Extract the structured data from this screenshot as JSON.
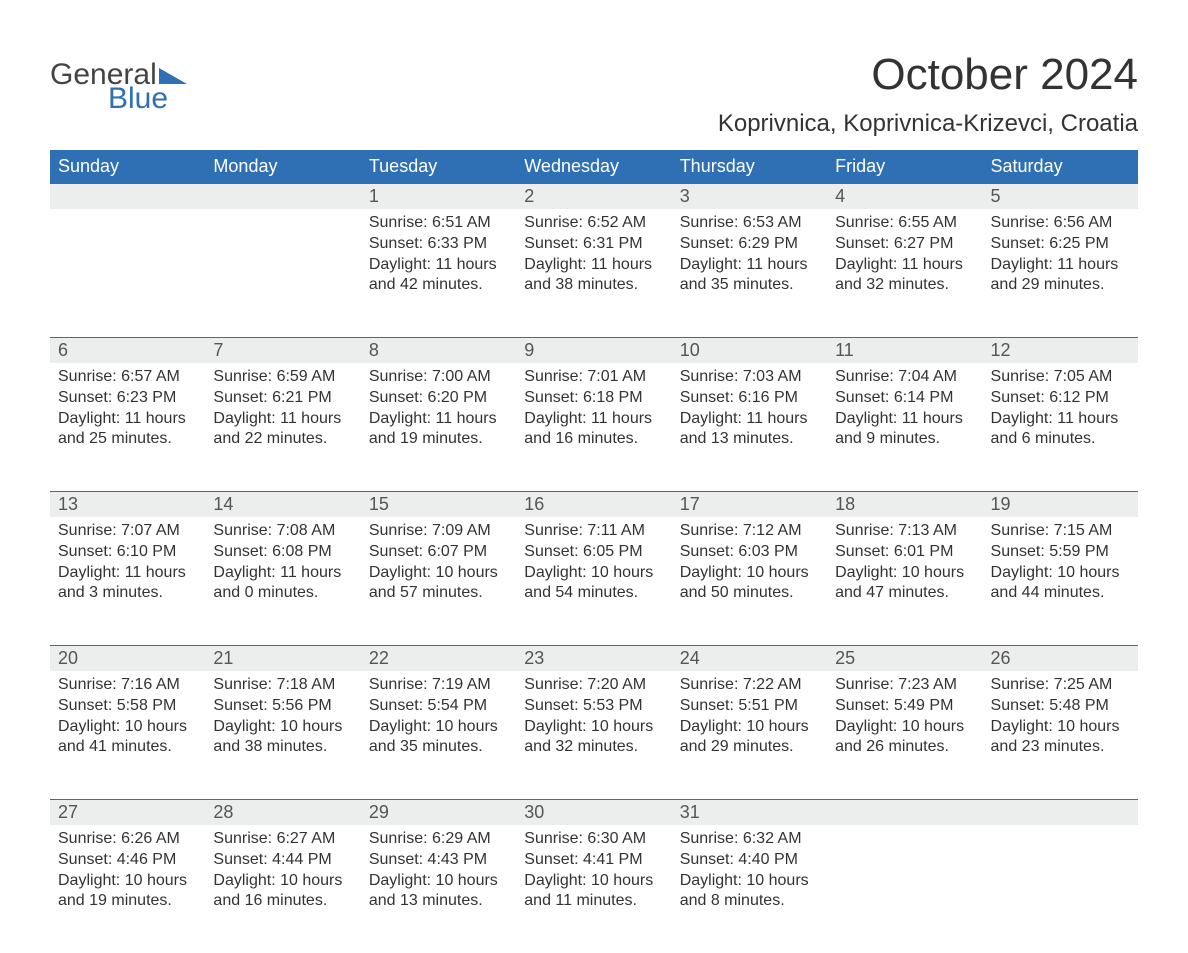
{
  "logo": {
    "word1": "General",
    "word2": "Blue",
    "accent_color": "#2f6fb3",
    "text_color": "#444444"
  },
  "title": "October 2024",
  "location": "Koprivnica, Koprivnica-Krizevci, Croatia",
  "colors": {
    "header_bg": "#2f6fb3",
    "header_text": "#ffffff",
    "daynum_bg": "#eceded",
    "daynum_border": "#2f6fb3",
    "daynum_text": "#555555",
    "body_text": "#333333",
    "background": "#ffffff"
  },
  "weekdays": [
    "Sunday",
    "Monday",
    "Tuesday",
    "Wednesday",
    "Thursday",
    "Friday",
    "Saturday"
  ],
  "weeks": [
    [
      null,
      null,
      {
        "n": "1",
        "sunrise": "Sunrise: 6:51 AM",
        "sunset": "Sunset: 6:33 PM",
        "dl1": "Daylight: 11 hours",
        "dl2": "and 42 minutes."
      },
      {
        "n": "2",
        "sunrise": "Sunrise: 6:52 AM",
        "sunset": "Sunset: 6:31 PM",
        "dl1": "Daylight: 11 hours",
        "dl2": "and 38 minutes."
      },
      {
        "n": "3",
        "sunrise": "Sunrise: 6:53 AM",
        "sunset": "Sunset: 6:29 PM",
        "dl1": "Daylight: 11 hours",
        "dl2": "and 35 minutes."
      },
      {
        "n": "4",
        "sunrise": "Sunrise: 6:55 AM",
        "sunset": "Sunset: 6:27 PM",
        "dl1": "Daylight: 11 hours",
        "dl2": "and 32 minutes."
      },
      {
        "n": "5",
        "sunrise": "Sunrise: 6:56 AM",
        "sunset": "Sunset: 6:25 PM",
        "dl1": "Daylight: 11 hours",
        "dl2": "and 29 minutes."
      }
    ],
    [
      {
        "n": "6",
        "sunrise": "Sunrise: 6:57 AM",
        "sunset": "Sunset: 6:23 PM",
        "dl1": "Daylight: 11 hours",
        "dl2": "and 25 minutes."
      },
      {
        "n": "7",
        "sunrise": "Sunrise: 6:59 AM",
        "sunset": "Sunset: 6:21 PM",
        "dl1": "Daylight: 11 hours",
        "dl2": "and 22 minutes."
      },
      {
        "n": "8",
        "sunrise": "Sunrise: 7:00 AM",
        "sunset": "Sunset: 6:20 PM",
        "dl1": "Daylight: 11 hours",
        "dl2": "and 19 minutes."
      },
      {
        "n": "9",
        "sunrise": "Sunrise: 7:01 AM",
        "sunset": "Sunset: 6:18 PM",
        "dl1": "Daylight: 11 hours",
        "dl2": "and 16 minutes."
      },
      {
        "n": "10",
        "sunrise": "Sunrise: 7:03 AM",
        "sunset": "Sunset: 6:16 PM",
        "dl1": "Daylight: 11 hours",
        "dl2": "and 13 minutes."
      },
      {
        "n": "11",
        "sunrise": "Sunrise: 7:04 AM",
        "sunset": "Sunset: 6:14 PM",
        "dl1": "Daylight: 11 hours",
        "dl2": "and 9 minutes."
      },
      {
        "n": "12",
        "sunrise": "Sunrise: 7:05 AM",
        "sunset": "Sunset: 6:12 PM",
        "dl1": "Daylight: 11 hours",
        "dl2": "and 6 minutes."
      }
    ],
    [
      {
        "n": "13",
        "sunrise": "Sunrise: 7:07 AM",
        "sunset": "Sunset: 6:10 PM",
        "dl1": "Daylight: 11 hours",
        "dl2": "and 3 minutes."
      },
      {
        "n": "14",
        "sunrise": "Sunrise: 7:08 AM",
        "sunset": "Sunset: 6:08 PM",
        "dl1": "Daylight: 11 hours",
        "dl2": "and 0 minutes."
      },
      {
        "n": "15",
        "sunrise": "Sunrise: 7:09 AM",
        "sunset": "Sunset: 6:07 PM",
        "dl1": "Daylight: 10 hours",
        "dl2": "and 57 minutes."
      },
      {
        "n": "16",
        "sunrise": "Sunrise: 7:11 AM",
        "sunset": "Sunset: 6:05 PM",
        "dl1": "Daylight: 10 hours",
        "dl2": "and 54 minutes."
      },
      {
        "n": "17",
        "sunrise": "Sunrise: 7:12 AM",
        "sunset": "Sunset: 6:03 PM",
        "dl1": "Daylight: 10 hours",
        "dl2": "and 50 minutes."
      },
      {
        "n": "18",
        "sunrise": "Sunrise: 7:13 AM",
        "sunset": "Sunset: 6:01 PM",
        "dl1": "Daylight: 10 hours",
        "dl2": "and 47 minutes."
      },
      {
        "n": "19",
        "sunrise": "Sunrise: 7:15 AM",
        "sunset": "Sunset: 5:59 PM",
        "dl1": "Daylight: 10 hours",
        "dl2": "and 44 minutes."
      }
    ],
    [
      {
        "n": "20",
        "sunrise": "Sunrise: 7:16 AM",
        "sunset": "Sunset: 5:58 PM",
        "dl1": "Daylight: 10 hours",
        "dl2": "and 41 minutes."
      },
      {
        "n": "21",
        "sunrise": "Sunrise: 7:18 AM",
        "sunset": "Sunset: 5:56 PM",
        "dl1": "Daylight: 10 hours",
        "dl2": "and 38 minutes."
      },
      {
        "n": "22",
        "sunrise": "Sunrise: 7:19 AM",
        "sunset": "Sunset: 5:54 PM",
        "dl1": "Daylight: 10 hours",
        "dl2": "and 35 minutes."
      },
      {
        "n": "23",
        "sunrise": "Sunrise: 7:20 AM",
        "sunset": "Sunset: 5:53 PM",
        "dl1": "Daylight: 10 hours",
        "dl2": "and 32 minutes."
      },
      {
        "n": "24",
        "sunrise": "Sunrise: 7:22 AM",
        "sunset": "Sunset: 5:51 PM",
        "dl1": "Daylight: 10 hours",
        "dl2": "and 29 minutes."
      },
      {
        "n": "25",
        "sunrise": "Sunrise: 7:23 AM",
        "sunset": "Sunset: 5:49 PM",
        "dl1": "Daylight: 10 hours",
        "dl2": "and 26 minutes."
      },
      {
        "n": "26",
        "sunrise": "Sunrise: 7:25 AM",
        "sunset": "Sunset: 5:48 PM",
        "dl1": "Daylight: 10 hours",
        "dl2": "and 23 minutes."
      }
    ],
    [
      {
        "n": "27",
        "sunrise": "Sunrise: 6:26 AM",
        "sunset": "Sunset: 4:46 PM",
        "dl1": "Daylight: 10 hours",
        "dl2": "and 19 minutes."
      },
      {
        "n": "28",
        "sunrise": "Sunrise: 6:27 AM",
        "sunset": "Sunset: 4:44 PM",
        "dl1": "Daylight: 10 hours",
        "dl2": "and 16 minutes."
      },
      {
        "n": "29",
        "sunrise": "Sunrise: 6:29 AM",
        "sunset": "Sunset: 4:43 PM",
        "dl1": "Daylight: 10 hours",
        "dl2": "and 13 minutes."
      },
      {
        "n": "30",
        "sunrise": "Sunrise: 6:30 AM",
        "sunset": "Sunset: 4:41 PM",
        "dl1": "Daylight: 10 hours",
        "dl2": "and 11 minutes."
      },
      {
        "n": "31",
        "sunrise": "Sunrise: 6:32 AM",
        "sunset": "Sunset: 4:40 PM",
        "dl1": "Daylight: 10 hours",
        "dl2": "and 8 minutes."
      },
      null,
      null
    ]
  ]
}
